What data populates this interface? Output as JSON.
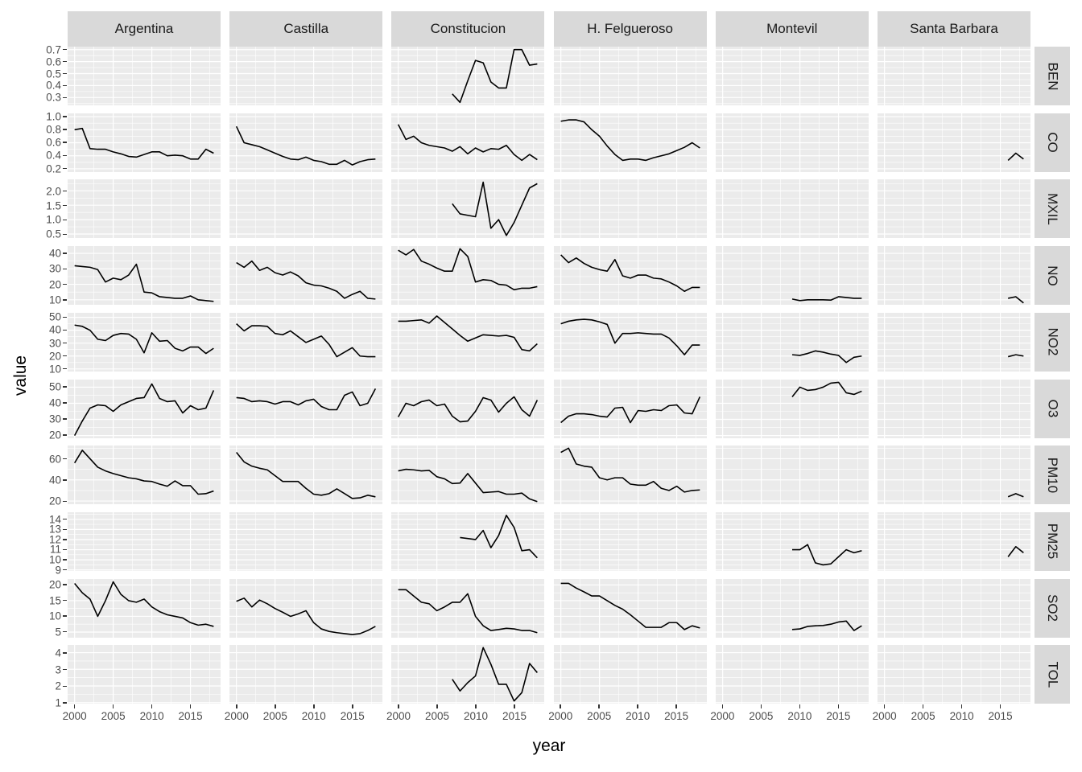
{
  "colors": {
    "panel_background": "#ebebeb",
    "strip_background": "#d9d9d9",
    "grid_line": "#ffffff",
    "data_line": "#000000",
    "tick_text": "#4d4d4d",
    "strip_text": "#1a1a1a",
    "tick_mark": "#333333"
  },
  "chart_data": {
    "type": "line",
    "title": "",
    "xlabel": "year",
    "ylabel": "value",
    "legend": "none",
    "grid": "on",
    "x_domain": [
      1999.1,
      2018.9
    ],
    "x_major_ticks": [
      2000,
      2005,
      2010,
      2015
    ],
    "x_minor_ticks": [
      2002.5,
      2007.5,
      2012.5,
      2017.5
    ],
    "x_tick_labels": [
      "2000",
      "2005",
      "2010",
      "2015"
    ],
    "columns": [
      "Argentina",
      "Castilla",
      "Constitucion",
      "H. Felgueroso",
      "Montevil",
      "Santa Barbara"
    ],
    "rows": [
      {
        "label": "BEN",
        "ticks": [
          0.3,
          0.4,
          0.5,
          0.6,
          0.7
        ],
        "tick_labels": [
          "0.3",
          "0.4",
          "0.5",
          "0.6",
          "0.7"
        ],
        "domain": [
          0.235,
          0.725
        ]
      },
      {
        "label": "CO",
        "ticks": [
          0.2,
          0.4,
          0.6,
          0.8,
          1.0
        ],
        "tick_labels": [
          "0.2",
          "0.4",
          "0.6",
          "0.8",
          "1.0"
        ],
        "domain": [
          0.15,
          1.05
        ]
      },
      {
        "label": "MXIL",
        "ticks": [
          0.5,
          1.0,
          1.5,
          2.0
        ],
        "tick_labels": [
          "0.5",
          "1.0",
          "1.5",
          "2.0"
        ],
        "domain": [
          0.36,
          2.4
        ]
      },
      {
        "label": "NO",
        "ticks": [
          10,
          20,
          30,
          40
        ],
        "tick_labels": [
          "10",
          "20",
          "30",
          "40"
        ],
        "domain": [
          6.8,
          44.7
        ]
      },
      {
        "label": "NO2",
        "ticks": [
          10,
          20,
          30,
          40,
          50
        ],
        "tick_labels": [
          "10",
          "20",
          "30",
          "40",
          "50"
        ],
        "domain": [
          8,
          53.5
        ]
      },
      {
        "label": "O3",
        "ticks": [
          20,
          30,
          40,
          50
        ],
        "tick_labels": [
          "20",
          "30",
          "40",
          "50"
        ],
        "domain": [
          18.3,
          54.7
        ]
      },
      {
        "label": "PM10",
        "ticks": [
          20,
          40,
          60
        ],
        "tick_labels": [
          "20",
          "40",
          "60"
        ],
        "domain": [
          17,
          72.5
        ]
      },
      {
        "label": "PM25",
        "ticks": [
          9,
          10,
          11,
          12,
          13,
          14
        ],
        "tick_labels": [
          "9",
          "10",
          "11",
          "12",
          "13",
          "14"
        ],
        "domain": [
          8.9,
          14.7
        ]
      },
      {
        "label": "SO2",
        "ticks": [
          5,
          10,
          15,
          20
        ],
        "tick_labels": [
          "5",
          "10",
          "15",
          "20"
        ],
        "domain": [
          3.2,
          21.9
        ]
      },
      {
        "label": "TOL",
        "ticks": [
          1,
          2,
          3,
          4
        ],
        "tick_labels": [
          "1",
          "2",
          "3",
          "4"
        ],
        "domain": [
          0.94,
          4.46
        ]
      }
    ],
    "series": [
      {
        "row": "BEN",
        "col": "Constitucion",
        "start_year": 2007,
        "values": [
          0.33,
          0.26,
          0.44,
          0.61,
          0.59,
          0.43,
          0.38,
          0.38,
          0.7,
          0.7,
          0.57,
          0.58
        ]
      },
      {
        "row": "CO",
        "col": "Argentina",
        "start_year": 2000,
        "values": [
          0.8,
          0.82,
          0.51,
          0.5,
          0.5,
          0.46,
          0.43,
          0.39,
          0.38,
          0.42,
          0.46,
          0.46,
          0.4,
          0.41,
          0.4,
          0.35,
          0.35,
          0.5,
          0.44
        ]
      },
      {
        "row": "CO",
        "col": "Castilla",
        "start_year": 2000,
        "values": [
          0.85,
          0.6,
          0.57,
          0.54,
          0.49,
          0.44,
          0.39,
          0.35,
          0.34,
          0.38,
          0.33,
          0.31,
          0.27,
          0.27,
          0.33,
          0.26,
          0.31,
          0.34,
          0.35
        ]
      },
      {
        "row": "CO",
        "col": "Constitucion",
        "start_year": 2000,
        "values": [
          0.88,
          0.65,
          0.7,
          0.6,
          0.56,
          0.54,
          0.52,
          0.47,
          0.54,
          0.43,
          0.52,
          0.46,
          0.51,
          0.5,
          0.56,
          0.42,
          0.33,
          0.42,
          0.34
        ]
      },
      {
        "row": "CO",
        "col": "H. Felgueroso",
        "start_year": 2000,
        "values": [
          0.93,
          0.95,
          0.95,
          0.92,
          0.8,
          0.7,
          0.55,
          0.42,
          0.33,
          0.35,
          0.35,
          0.33,
          0.37,
          0.4,
          0.43,
          0.48,
          0.53,
          0.6,
          0.52
        ]
      },
      {
        "row": "CO",
        "col": "Santa Barbara",
        "start_year": 2016,
        "values": [
          0.33,
          0.44,
          0.35
        ]
      },
      {
        "row": "MXIL",
        "col": "Constitucion",
        "start_year": 2007,
        "values": [
          1.55,
          1.2,
          1.15,
          1.1,
          2.3,
          0.7,
          1.0,
          0.45,
          0.9,
          1.5,
          2.1,
          2.25
        ]
      },
      {
        "row": "NO",
        "col": "Argentina",
        "start_year": 2000,
        "values": [
          32,
          31.5,
          31,
          29.5,
          21.5,
          24,
          23,
          26,
          33,
          15,
          14.5,
          12,
          11.5,
          11,
          11,
          12.5,
          10,
          9.5,
          9
        ]
      },
      {
        "row": "NO",
        "col": "Castilla",
        "start_year": 2000,
        "values": [
          34,
          31,
          35,
          29,
          31,
          27.5,
          26,
          28,
          25.5,
          21,
          19.5,
          19,
          17.5,
          15.5,
          11,
          13.5,
          15.5,
          11,
          10.5
        ]
      },
      {
        "row": "NO",
        "col": "Constitucion",
        "start_year": 2000,
        "values": [
          42,
          39,
          42.5,
          35,
          33,
          30.5,
          28.5,
          28.5,
          43,
          38,
          21.5,
          23,
          22.5,
          20,
          19.5,
          16.5,
          17.5,
          17.5,
          18.5
        ]
      },
      {
        "row": "NO",
        "col": "H. Felgueroso",
        "start_year": 2000,
        "values": [
          39,
          34,
          37,
          33.5,
          31,
          29.5,
          28.5,
          36,
          25.5,
          24,
          26,
          26,
          24,
          23.5,
          21.5,
          19,
          15.5,
          18,
          18
        ]
      },
      {
        "row": "NO",
        "col": "Montevil",
        "start_year": 2009,
        "values": [
          10.5,
          9.5,
          10,
          10,
          10,
          9.8,
          12,
          11.5,
          11,
          11
        ]
      },
      {
        "row": "NO",
        "col": "Santa Barbara",
        "start_year": 2016,
        "values": [
          11,
          12,
          8
        ]
      },
      {
        "row": "NO2",
        "col": "Argentina",
        "start_year": 2000,
        "values": [
          44,
          43,
          40,
          33,
          32,
          36,
          37.5,
          37,
          33,
          22.5,
          38,
          31.5,
          32,
          26,
          24,
          27,
          27,
          22,
          26
        ]
      },
      {
        "row": "NO2",
        "col": "Castilla",
        "start_year": 2000,
        "values": [
          45,
          39.5,
          43.5,
          43.5,
          43,
          37.5,
          36.5,
          39.5,
          35,
          30.5,
          33,
          35.5,
          29,
          19.5,
          23,
          26.5,
          20,
          19.5,
          19.5
        ]
      },
      {
        "row": "NO2",
        "col": "Constitucion",
        "start_year": 2000,
        "values": [
          47,
          47,
          47.5,
          48,
          45.5,
          51,
          46,
          41,
          36,
          31.5,
          34,
          36.5,
          36,
          35.5,
          36,
          34.5,
          25,
          24,
          29.5
        ]
      },
      {
        "row": "NO2",
        "col": "H. Felgueroso",
        "start_year": 2000,
        "values": [
          45,
          47,
          48,
          48.5,
          48,
          46.5,
          44.5,
          30,
          37.5,
          37.5,
          38,
          37.5,
          37,
          37,
          34,
          28,
          21,
          28.5,
          28.5
        ]
      },
      {
        "row": "NO2",
        "col": "Montevil",
        "start_year": 2009,
        "values": [
          21,
          20.5,
          22,
          24,
          23,
          21.5,
          20.5,
          15,
          19,
          20
        ]
      },
      {
        "row": "NO2",
        "col": "Santa Barbara",
        "start_year": 2016,
        "values": [
          19.5,
          21,
          20
        ]
      },
      {
        "row": "O3",
        "col": "Argentina",
        "start_year": 2000,
        "values": [
          20,
          29,
          37,
          39,
          38.5,
          35,
          39,
          41,
          43,
          43.5,
          52,
          43,
          41,
          41.5,
          34,
          38.5,
          36,
          37,
          48
        ]
      },
      {
        "row": "O3",
        "col": "Castilla",
        "start_year": 2000,
        "values": [
          43.5,
          43,
          41,
          41.5,
          41,
          39.5,
          41,
          41,
          39,
          41.5,
          42.5,
          38,
          36,
          36,
          45,
          47,
          38.5,
          40,
          49
        ]
      },
      {
        "row": "O3",
        "col": "Constitucion",
        "start_year": 2000,
        "values": [
          31.5,
          40,
          38.5,
          41,
          42,
          38.5,
          39.5,
          32,
          28.5,
          29,
          35,
          43.5,
          42,
          34.5,
          40,
          44,
          36,
          32,
          42
        ]
      },
      {
        "row": "O3",
        "col": "H. Felgueroso",
        "start_year": 2000,
        "values": [
          28,
          32,
          33.5,
          33.5,
          33,
          32,
          31.5,
          37,
          37.5,
          28,
          35.5,
          35,
          36,
          35.5,
          38.5,
          39,
          34,
          33.5,
          44
        ]
      },
      {
        "row": "O3",
        "col": "Montevil",
        "start_year": 2009,
        "values": [
          44,
          50,
          48,
          48.5,
          50,
          52.5,
          53,
          46.5,
          45.5,
          47.5
        ]
      },
      {
        "row": "PM10",
        "col": "Argentina",
        "start_year": 2000,
        "values": [
          56,
          68,
          60,
          52,
          48.5,
          46,
          44,
          42,
          41,
          39,
          38.5,
          36,
          34,
          39,
          34.5,
          34.5,
          26.5,
          27,
          29.5
        ]
      },
      {
        "row": "PM10",
        "col": "Castilla",
        "start_year": 2000,
        "values": [
          66,
          57,
          53,
          51,
          49.5,
          44,
          38.5,
          38.5,
          38.5,
          32,
          26.5,
          25.5,
          27,
          31.5,
          27,
          22.5,
          23,
          25.5,
          24
        ]
      },
      {
        "row": "PM10",
        "col": "Constitucion",
        "start_year": 2000,
        "values": [
          48.5,
          50,
          49.5,
          48.5,
          49,
          43,
          41,
          36.5,
          37,
          46,
          37,
          28,
          28.5,
          29,
          26.5,
          26.5,
          27.5,
          22,
          19.5
        ]
      },
      {
        "row": "PM10",
        "col": "H. Felgueroso",
        "start_year": 2000,
        "values": [
          66,
          70,
          55,
          53,
          52,
          42,
          40,
          42,
          42,
          36,
          35,
          35,
          38.5,
          32,
          30,
          34,
          28.5,
          30,
          30.5
        ]
      },
      {
        "row": "PM10",
        "col": "Santa Barbara",
        "start_year": 2016,
        "values": [
          24,
          27,
          24
        ]
      },
      {
        "row": "PM25",
        "col": "Constitucion",
        "start_year": 2008,
        "values": [
          12.2,
          12.1,
          12.0,
          12.9,
          11.2,
          12.4,
          14.4,
          13.2,
          10.9,
          11.0,
          10.2
        ]
      },
      {
        "row": "PM25",
        "col": "Montevil",
        "start_year": 2009,
        "values": [
          11,
          11,
          11.5,
          9.7,
          9.5,
          9.6,
          10.3,
          11,
          10.7,
          10.9
        ]
      },
      {
        "row": "PM25",
        "col": "Santa Barbara",
        "start_year": 2016,
        "values": [
          10.3,
          11.3,
          10.7
        ]
      },
      {
        "row": "SO2",
        "col": "Argentina",
        "start_year": 2000,
        "values": [
          20.5,
          17.5,
          15.5,
          10,
          15,
          21,
          17,
          15,
          14.5,
          15.5,
          13,
          11.5,
          10.5,
          10,
          9.5,
          8,
          7.2,
          7.5,
          6.8
        ]
      },
      {
        "row": "SO2",
        "col": "Castilla",
        "start_year": 2000,
        "values": [
          14.8,
          15.8,
          13,
          15.2,
          14,
          12.5,
          11.3,
          10,
          10.8,
          11.8,
          8,
          6,
          5.2,
          4.8,
          4.5,
          4.2,
          4.5,
          5.5,
          6.8
        ]
      },
      {
        "row": "SO2",
        "col": "Constitucion",
        "start_year": 2000,
        "values": [
          18.5,
          18.5,
          16.5,
          14.5,
          14,
          11.8,
          13,
          14.5,
          14.5,
          17.2,
          10,
          7,
          5.5,
          5.8,
          6.2,
          6,
          5.5,
          5.5,
          4.8
        ]
      },
      {
        "row": "SO2",
        "col": "H. Felgueroso",
        "start_year": 2000,
        "values": [
          20.5,
          20.5,
          19,
          17.8,
          16.5,
          16.5,
          15,
          13.5,
          12.3,
          10.5,
          8.5,
          6.5,
          6.5,
          6.5,
          8,
          8,
          5.8,
          7,
          6.3
        ]
      },
      {
        "row": "SO2",
        "col": "Montevil",
        "start_year": 2009,
        "values": [
          5.8,
          6,
          6.8,
          7,
          7.1,
          7.5,
          8.2,
          8.5,
          5.5,
          7
        ]
      },
      {
        "row": "TOL",
        "col": "Constitucion",
        "start_year": 2007,
        "values": [
          2.4,
          1.7,
          2.2,
          2.6,
          4.3,
          3.3,
          2.1,
          2.1,
          1.1,
          1.6,
          3.35,
          2.8
        ]
      }
    ]
  }
}
